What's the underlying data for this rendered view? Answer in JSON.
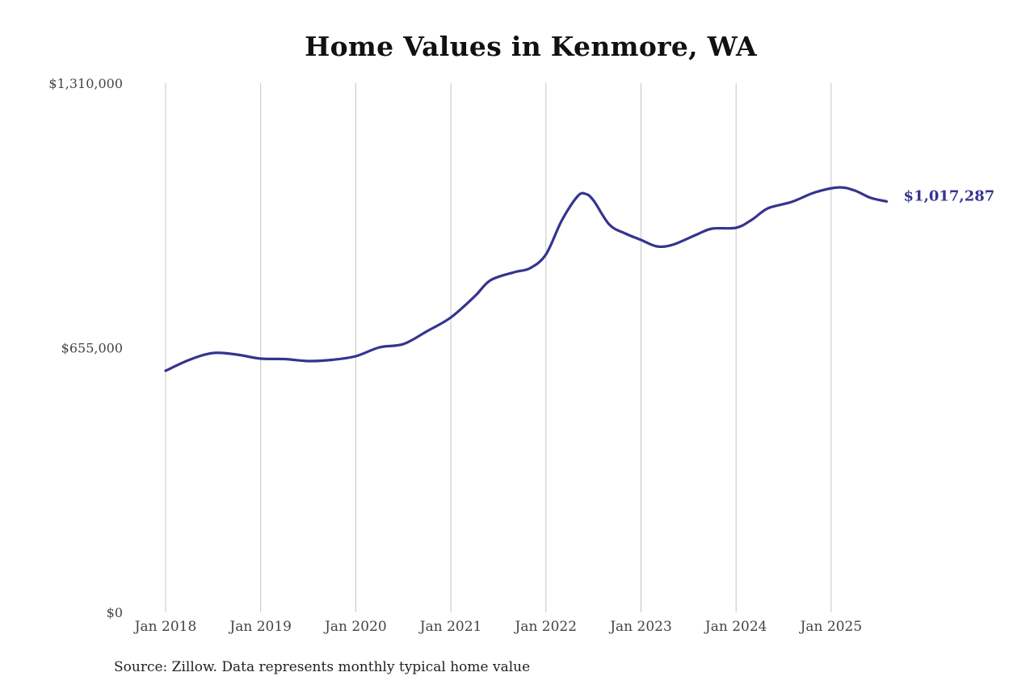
{
  "chart_data": {
    "type": "line",
    "title": "Home Values in Kenmore, WA",
    "xlabel": "",
    "ylabel": "",
    "ylim": [
      0,
      1310000
    ],
    "y_ticks": [
      {
        "value": 0,
        "label": "$0"
      },
      {
        "value": 655000,
        "label": "$655,000"
      },
      {
        "value": 1310000,
        "label": "$1,310,000"
      }
    ],
    "x_ticks": [
      "Jan 2018",
      "Jan 2019",
      "Jan 2020",
      "Jan 2021",
      "Jan 2022",
      "Jan 2023",
      "Jan 2024",
      "Jan 2025"
    ],
    "grid": {
      "vertical": true,
      "horizontal": false
    },
    "legend": "none",
    "series": [
      {
        "name": "Typical home value",
        "color": "#35348f",
        "end_label": "$1,017,287",
        "points": [
          {
            "date": "2018-01",
            "value": 598000
          },
          {
            "date": "2018-04",
            "value": 625000
          },
          {
            "date": "2018-07",
            "value": 642000
          },
          {
            "date": "2018-10",
            "value": 638000
          },
          {
            "date": "2019-01",
            "value": 628000
          },
          {
            "date": "2019-04",
            "value": 627000
          },
          {
            "date": "2019-07",
            "value": 622000
          },
          {
            "date": "2019-10",
            "value": 625000
          },
          {
            "date": "2020-01",
            "value": 634000
          },
          {
            "date": "2020-04",
            "value": 656000
          },
          {
            "date": "2020-07",
            "value": 664000
          },
          {
            "date": "2020-10",
            "value": 696000
          },
          {
            "date": "2021-01",
            "value": 730000
          },
          {
            "date": "2021-04",
            "value": 782000
          },
          {
            "date": "2021-06",
            "value": 822000
          },
          {
            "date": "2021-09",
            "value": 842000
          },
          {
            "date": "2021-11",
            "value": 852000
          },
          {
            "date": "2022-01",
            "value": 886000
          },
          {
            "date": "2022-03",
            "value": 970000
          },
          {
            "date": "2022-05",
            "value": 1030000
          },
          {
            "date": "2022-06",
            "value": 1036000
          },
          {
            "date": "2022-07",
            "value": 1020000
          },
          {
            "date": "2022-09",
            "value": 960000
          },
          {
            "date": "2022-11",
            "value": 938000
          },
          {
            "date": "2023-01",
            "value": 922000
          },
          {
            "date": "2023-03",
            "value": 906000
          },
          {
            "date": "2023-05",
            "value": 910000
          },
          {
            "date": "2023-08",
            "value": 935000
          },
          {
            "date": "2023-10",
            "value": 950000
          },
          {
            "date": "2024-01",
            "value": 952000
          },
          {
            "date": "2024-03",
            "value": 972000
          },
          {
            "date": "2024-05",
            "value": 1000000
          },
          {
            "date": "2024-08",
            "value": 1016000
          },
          {
            "date": "2024-11",
            "value": 1040000
          },
          {
            "date": "2025-02",
            "value": 1052000
          },
          {
            "date": "2025-04",
            "value": 1044000
          },
          {
            "date": "2025-06",
            "value": 1026000
          },
          {
            "date": "2025-08",
            "value": 1017287
          }
        ]
      }
    ]
  },
  "source_note": "Source: Zillow. Data represents monthly typical home value"
}
